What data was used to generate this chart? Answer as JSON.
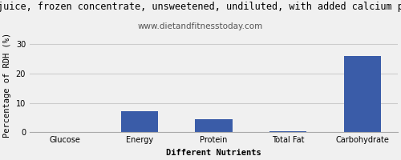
{
  "title": "juice, frozen concentrate, unsweetened, undiluted, with added calcium p",
  "subtitle": "www.dietandfitnesstoday.com",
  "xlabel": "Different Nutrients",
  "ylabel": "Percentage of RDH (%)",
  "categories": [
    "Glucose",
    "Energy",
    "Protein",
    "Total Fat",
    "Carbohydrate"
  ],
  "values": [
    0.1,
    7.1,
    4.5,
    0.3,
    26.0
  ],
  "bar_color": "#3a5ca8",
  "ylim": [
    0,
    32
  ],
  "yticks": [
    0,
    10,
    20,
    30
  ],
  "background_color": "#f0f0f0",
  "grid_color": "#cccccc",
  "title_fontsize": 8.5,
  "subtitle_fontsize": 7.5,
  "axis_label_fontsize": 7.5,
  "tick_fontsize": 7.0
}
